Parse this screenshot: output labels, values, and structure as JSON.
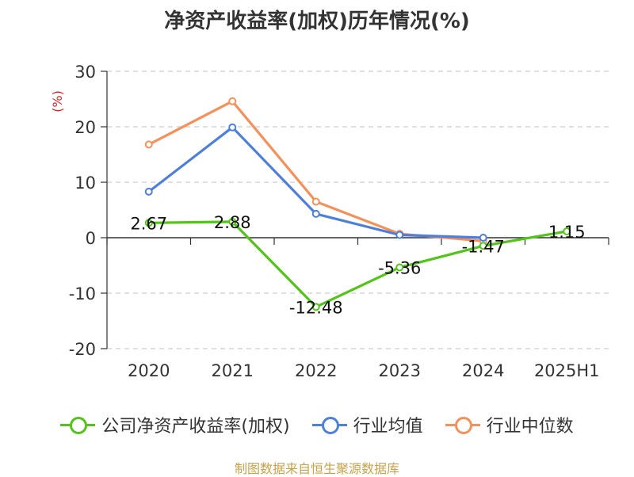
{
  "chart_data": {
    "type": "line",
    "title": "净资产收益率(加权)历年情况(%)",
    "ylabel": "(%)",
    "categories": [
      "2020",
      "2021",
      "2022",
      "2023",
      "2024",
      "2025H1"
    ],
    "ylim": [
      -20,
      30
    ],
    "yticks": [
      "30",
      "20",
      "10",
      "0",
      "-10",
      "-20"
    ],
    "ytick_values": [
      30,
      20,
      10,
      0,
      -10,
      -20
    ],
    "grid": true,
    "legend_position": "bottom",
    "series": [
      {
        "name": "公司净资产收益率(加权)",
        "color": "#52c41a",
        "values": [
          2.67,
          2.88,
          -12.48,
          -5.36,
          -1.47,
          1.15
        ],
        "labels": [
          "2.67",
          "2.88",
          "-12.48",
          "-5.36",
          "-1.47",
          "1.15"
        ]
      },
      {
        "name": "行业均值",
        "color": "#4e7fdc",
        "values": [
          8.3,
          19.9,
          4.3,
          0.5,
          0.0,
          null
        ]
      },
      {
        "name": "行业中位数",
        "color": "#f59158",
        "values": [
          16.8,
          24.6,
          6.5,
          0.7,
          -0.6,
          null
        ]
      }
    ]
  },
  "source": "制图数据来自恒生聚源数据库"
}
